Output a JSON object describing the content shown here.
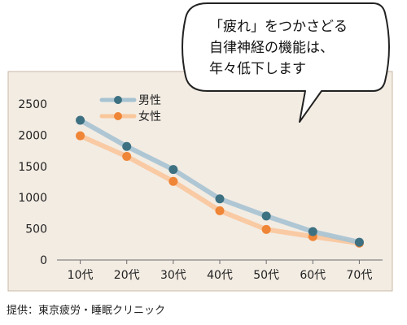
{
  "chart_data": {
    "type": "line",
    "categories": [
      "10代",
      "20代",
      "30代",
      "40代",
      "50代",
      "60代",
      "70代"
    ],
    "series": [
      {
        "name": "男性",
        "values": [
          2240,
          1820,
          1450,
          980,
          705,
          455,
          285
        ],
        "color": "#3d7182",
        "line_color": "#a7c3d1"
      },
      {
        "name": "女性",
        "values": [
          1990,
          1660,
          1260,
          790,
          490,
          375,
          270
        ],
        "color": "#ef8536",
        "line_color": "#f9c79b"
      }
    ],
    "yticks": [
      "0",
      "500",
      "1000",
      "1500",
      "2000",
      "2500"
    ],
    "ylim": [
      0,
      2500
    ],
    "grid": false,
    "legend_position": "top-left",
    "plot_background": "#f3ece3",
    "frame_color": "#c8b8a6"
  },
  "callout": {
    "lines": [
      "「疲れ」をつかさどる",
      "自律神経の機能は、",
      "年々低下します"
    ]
  },
  "source": "提供：東京疲労・睡眠クリニック"
}
